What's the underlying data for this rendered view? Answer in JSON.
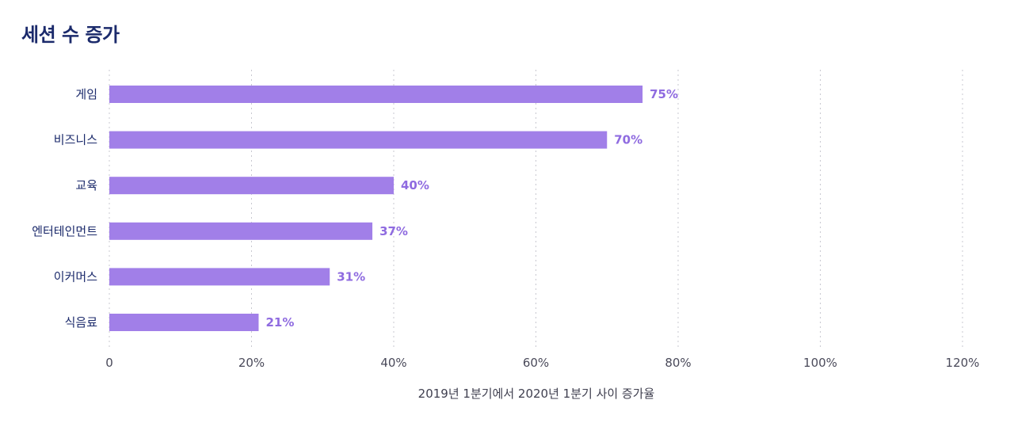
{
  "title": "세션 수 증가",
  "colors": {
    "bar": "#a17fe8",
    "value_label": "#8f6be0",
    "title": "#1b2a6b"
  },
  "chart_data": {
    "type": "bar",
    "orientation": "horizontal",
    "title": "세션 수 증가",
    "categories": [
      "게임",
      "비즈니스",
      "교육",
      "엔터테인먼트",
      "이커머스",
      "식음료"
    ],
    "values": [
      75,
      70,
      40,
      37,
      31,
      21
    ],
    "value_labels": [
      "75%",
      "70%",
      "40%",
      "37%",
      "31%",
      "21%"
    ],
    "xlabel": "2019년 1분기에서 2020년 1분기 사이 증가율",
    "ylabel": "",
    "xlim": [
      0,
      120
    ],
    "xticks": [
      0,
      20,
      40,
      60,
      80,
      100,
      120
    ],
    "xtick_labels": [
      "0",
      "20%",
      "40%",
      "60%",
      "80%",
      "100%",
      "120%"
    ],
    "grid": "vertical dotted",
    "legend": "none"
  }
}
